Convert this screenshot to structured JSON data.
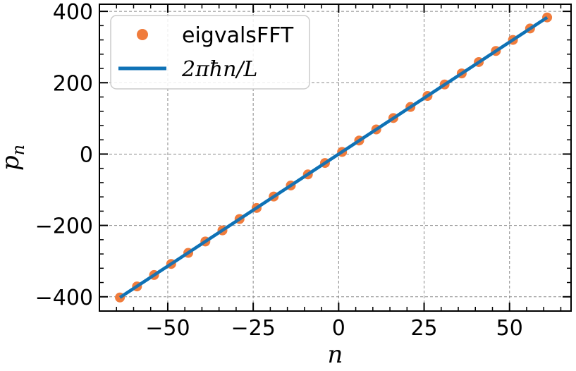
{
  "chart_data": {
    "type": "scatter",
    "title": "",
    "xlabel": "n",
    "ylabel": "p",
    "ylabel_subscript": "n",
    "xlim": [
      -70,
      68
    ],
    "ylim": [
      -440,
      420
    ],
    "xticks": [
      -50,
      -25,
      0,
      25,
      50
    ],
    "yticks": [
      -400,
      -200,
      0,
      200,
      400
    ],
    "xtick_labels": [
      "−50",
      "−25",
      "0",
      "25",
      "50"
    ],
    "ytick_labels": [
      "−400",
      "−200",
      "0",
      "200",
      "400"
    ],
    "grid": true,
    "legend_position": "top-left",
    "series": [
      {
        "name": "eigvalsFFT",
        "kind": "scatter",
        "color": "#f07c3c",
        "x": [
          -64,
          -59,
          -54,
          -49,
          -44,
          -39,
          -34,
          -29,
          -24,
          -19,
          -14,
          -9,
          -4,
          1,
          6,
          11,
          16,
          21,
          26,
          31,
          36,
          41,
          46,
          51,
          56,
          61
        ],
        "y": [
          -402,
          -371,
          -339,
          -308,
          -277,
          -245,
          -214,
          -182,
          -151,
          -119,
          -88,
          -57,
          -25,
          6,
          38,
          69,
          101,
          132,
          163,
          195,
          226,
          258,
          289,
          320,
          352,
          383
        ]
      },
      {
        "name": "2πħn/L",
        "kind": "line",
        "color": "#0f72b6",
        "x": [
          -64,
          61
        ],
        "y": [
          -402,
          383
        ]
      }
    ]
  }
}
